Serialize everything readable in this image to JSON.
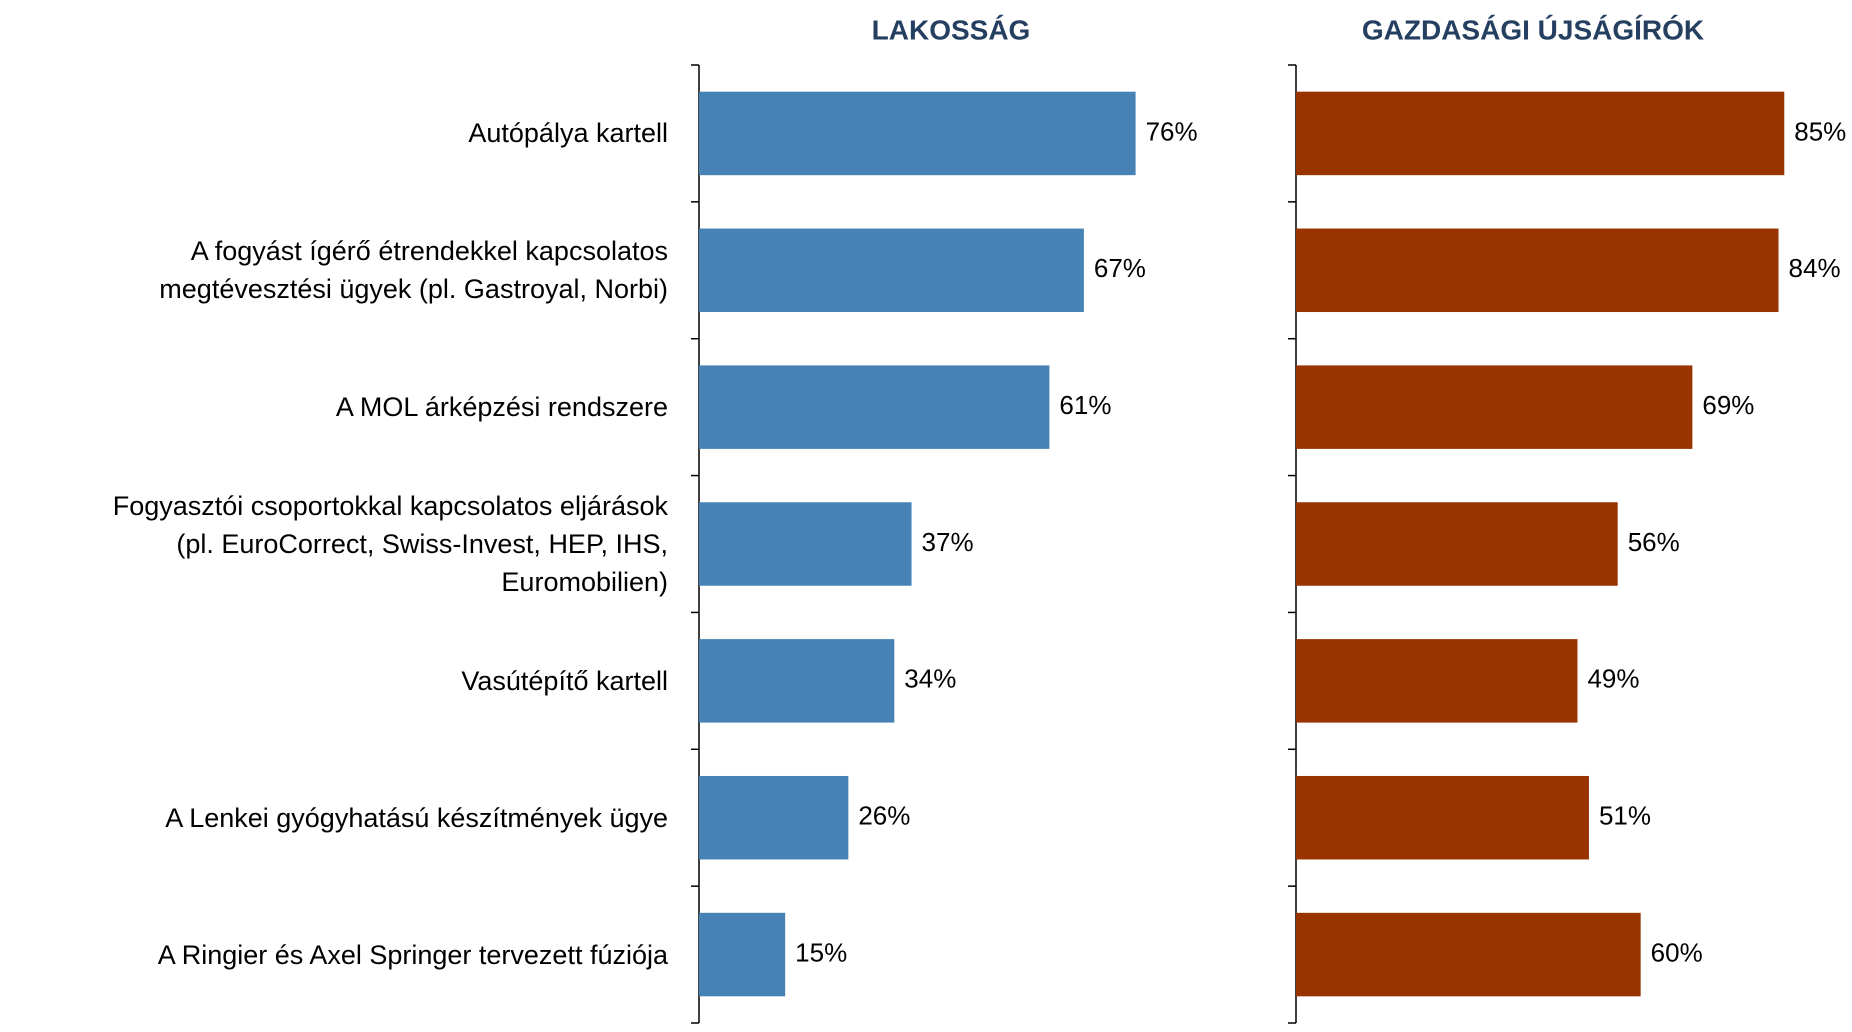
{
  "chart_data": [
    {
      "type": "bar",
      "orientation": "horizontal",
      "title": "LAKOSSÁG",
      "categories": [
        "Autópálya kartell",
        "A fogyást ígérő étrendekkel kapcsolatos\nmegtévesztési ügyek (pl. Gastroyal, Norbi)",
        "A MOL árképzési rendszere",
        "Fogyasztói csoportokkal kapcsolatos eljárások\n(pl. EuroCorrect, Swiss-Invest, HEP, IHS,\nEuromobilien)",
        "Vasútépítő kartell",
        "A Lenkei gyógyhatású készítmények ügye",
        "A Ringier és Axel Springer tervezett fúziója"
      ],
      "values": [
        76,
        67,
        61,
        37,
        34,
        26,
        15
      ],
      "value_labels": [
        "76%",
        "67%",
        "61%",
        "37%",
        "34%",
        "26%",
        "15%"
      ],
      "color": "#4682b4",
      "xlim": [
        0,
        90
      ]
    },
    {
      "type": "bar",
      "orientation": "horizontal",
      "title": "GAZDASÁGI ÚJSÁGÍRÓK",
      "values": [
        85,
        84,
        69,
        56,
        49,
        51,
        60
      ],
      "value_labels": [
        "85%",
        "84%",
        "69%",
        "56%",
        "49%",
        "51%",
        "60%"
      ],
      "color": "#993300",
      "xlim": [
        0,
        90
      ]
    }
  ]
}
